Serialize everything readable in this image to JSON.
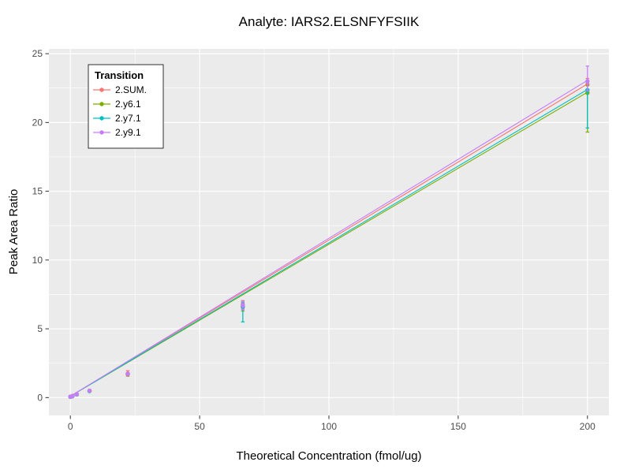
{
  "title": "Analyte: IARS2.ELSNFYFSIIK",
  "chart_data": {
    "type": "scatter",
    "title": "Analyte: IARS2.ELSNFYFSIIK",
    "xlabel": "Theoretical Concentration (fmol/ug)",
    "ylabel": "Peak Area Ratio",
    "xlim": [
      -8.3,
      208.3
    ],
    "ylim": [
      -1.3,
      25.35
    ],
    "x_ticks": [
      0,
      50,
      100,
      150,
      200
    ],
    "y_ticks": [
      0,
      5,
      10,
      15,
      20,
      25
    ],
    "grid": true,
    "panel_bg": "#EBEBEB",
    "grid_color": "#FFFFFF",
    "tick_label_color": "#4D4D4D",
    "legend_title": "Transition",
    "legend_position": "top-left-inside",
    "series": [
      {
        "name": "2.SUM.",
        "color": "#F8766D",
        "fit": {
          "intercept": 0.1,
          "slope": 0.1135
        },
        "points": [
          {
            "x": 0,
            "y": 0.07
          },
          {
            "x": 0.82,
            "y": 0.12
          },
          {
            "x": 2.47,
            "y": 0.25
          },
          {
            "x": 7.41,
            "y": 0.5
          },
          {
            "x": 22.2,
            "y": 1.75,
            "lo": 1.55,
            "hi": 1.95
          },
          {
            "x": 66.7,
            "y": 6.75,
            "lo": 6.45,
            "hi": 7.05
          },
          {
            "x": 200,
            "y": 22.75,
            "lo": 22.3,
            "hi": 23.2
          }
        ]
      },
      {
        "name": "2.y6.1",
        "color": "#7CAE00",
        "fit": {
          "intercept": 0.1,
          "slope": 0.1105
        },
        "points": [
          {
            "x": 0,
            "y": 0.05
          },
          {
            "x": 0.82,
            "y": 0.1
          },
          {
            "x": 2.47,
            "y": 0.22
          },
          {
            "x": 7.41,
            "y": 0.47
          },
          {
            "x": 22.2,
            "y": 1.7
          },
          {
            "x": 66.7,
            "y": 6.6,
            "lo": 6.3,
            "hi": 6.9
          },
          {
            "x": 200,
            "y": 22.15,
            "lo": 19.3,
            "hi": 22.7
          }
        ]
      },
      {
        "name": "2.y7.1",
        "color": "#00BFC4",
        "fit": {
          "intercept": 0.1,
          "slope": 0.1115
        },
        "points": [
          {
            "x": 0,
            "y": 0.05
          },
          {
            "x": 0.82,
            "y": 0.1
          },
          {
            "x": 2.47,
            "y": 0.23
          },
          {
            "x": 7.41,
            "y": 0.48
          },
          {
            "x": 22.2,
            "y": 1.72
          },
          {
            "x": 66.7,
            "y": 6.6,
            "lo": 5.5,
            "hi": 6.9
          },
          {
            "x": 200,
            "y": 22.35,
            "lo": 19.6,
            "hi": 22.9
          }
        ]
      },
      {
        "name": "2.y9.1",
        "color": "#C77CFF",
        "fit": {
          "intercept": 0.1,
          "slope": 0.1148
        },
        "points": [
          {
            "x": 0,
            "y": 0.06
          },
          {
            "x": 0.82,
            "y": 0.11
          },
          {
            "x": 2.47,
            "y": 0.24
          },
          {
            "x": 7.41,
            "y": 0.5
          },
          {
            "x": 22.2,
            "y": 1.73
          },
          {
            "x": 66.7,
            "y": 6.7,
            "lo": 6.4,
            "hi": 7.0
          },
          {
            "x": 200,
            "y": 23.0,
            "lo": 22.3,
            "hi": 24.1
          }
        ]
      }
    ]
  }
}
